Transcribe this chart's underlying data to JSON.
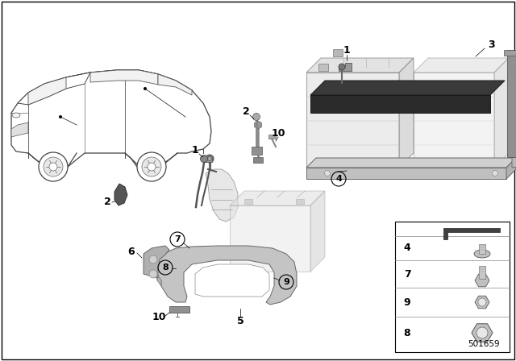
{
  "bg_color": "#ffffff",
  "part_number": "501659",
  "border_lw": 1.0,
  "line_color": "#000000",
  "gray_very_light": "#ebebeb",
  "gray_light": "#d4d4d4",
  "gray_mid": "#b0b0b0",
  "gray_dark": "#888888",
  "gray_darker": "#606060",
  "black_strap": "#3a3a3a",
  "car_outline": "#555555",
  "car_fill": "#ffffff",
  "tray_fill": "#c8c8c8",
  "bracket_fill": "#b8b8b8",
  "batt_front": "#e2e2e2",
  "batt_top": "#d0d0d0",
  "batt_side": "#c0c0c0"
}
